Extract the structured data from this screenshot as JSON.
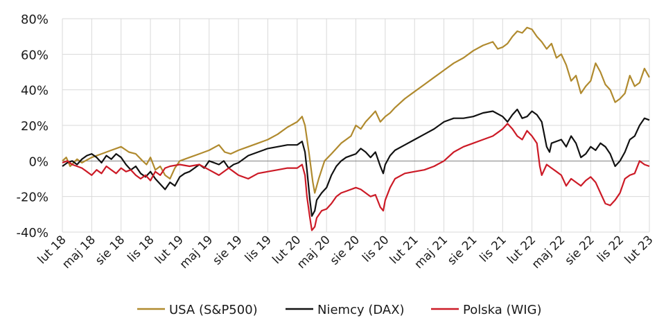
{
  "chart_data": {
    "type": "line",
    "title": "",
    "xlabel": "",
    "ylabel": "",
    "ylim": [
      -40,
      80
    ],
    "yticks": [
      -40,
      -20,
      0,
      20,
      40,
      60,
      80
    ],
    "ytick_labels": [
      "-40%",
      "-20%",
      "0%",
      "20%",
      "40%",
      "60%",
      "80%"
    ],
    "x_unit": "months since lut 18",
    "xlim": [
      0,
      60
    ],
    "xticks": [
      0,
      3,
      6,
      9,
      12,
      15,
      18,
      21,
      24,
      27,
      30,
      33,
      36,
      39,
      42,
      45,
      48,
      51,
      54,
      57,
      60
    ],
    "xtick_labels": [
      "lut 18",
      "maj 18",
      "sie 18",
      "lis 18",
      "lut 19",
      "maj 19",
      "sie 19",
      "lis 19",
      "lut 20",
      "maj 20",
      "sie 20",
      "lis 20",
      "lut 21",
      "maj 21",
      "sie 21",
      "lis 21",
      "lut 22",
      "maj 22",
      "sie 22",
      "lis 22",
      "lut 23"
    ],
    "grid": true,
    "legend_position": "bottom",
    "series": [
      {
        "name": "USA (S&P500)",
        "color": "#b08a2e",
        "points": [
          [
            0,
            0
          ],
          [
            0.4,
            2
          ],
          [
            0.8,
            -3
          ],
          [
            1.5,
            1
          ],
          [
            2,
            -1
          ],
          [
            3,
            2
          ],
          [
            4,
            4
          ],
          [
            5,
            6
          ],
          [
            6,
            8
          ],
          [
            6.8,
            5
          ],
          [
            7.5,
            4
          ],
          [
            8.2,
            0
          ],
          [
            8.6,
            -2
          ],
          [
            9,
            2
          ],
          [
            9.5,
            -5
          ],
          [
            10,
            -3
          ],
          [
            10.5,
            -8
          ],
          [
            11,
            -10
          ],
          [
            11.5,
            -4
          ],
          [
            12,
            0
          ],
          [
            13,
            2
          ],
          [
            14,
            4
          ],
          [
            15,
            6
          ],
          [
            16,
            9
          ],
          [
            16.6,
            5
          ],
          [
            17.2,
            4
          ],
          [
            18,
            6
          ],
          [
            19,
            8
          ],
          [
            20,
            10
          ],
          [
            21,
            12
          ],
          [
            22,
            15
          ],
          [
            23,
            19
          ],
          [
            24,
            22
          ],
          [
            24.5,
            25
          ],
          [
            24.8,
            20
          ],
          [
            25.2,
            5
          ],
          [
            25.6,
            -12
          ],
          [
            25.8,
            -18
          ],
          [
            26.2,
            -10
          ],
          [
            26.8,
            0
          ],
          [
            27.5,
            4
          ],
          [
            28.5,
            10
          ],
          [
            29.5,
            14
          ],
          [
            30,
            20
          ],
          [
            30.5,
            18
          ],
          [
            31,
            22
          ],
          [
            31.5,
            25
          ],
          [
            32,
            28
          ],
          [
            32.5,
            22
          ],
          [
            33,
            25
          ],
          [
            33.5,
            27
          ],
          [
            34,
            30
          ],
          [
            35,
            35
          ],
          [
            36,
            39
          ],
          [
            37,
            43
          ],
          [
            38,
            47
          ],
          [
            39,
            51
          ],
          [
            40,
            55
          ],
          [
            41,
            58
          ],
          [
            42,
            62
          ],
          [
            43,
            65
          ],
          [
            44,
            67
          ],
          [
            44.5,
            63
          ],
          [
            45,
            64
          ],
          [
            45.5,
            66
          ],
          [
            46,
            70
          ],
          [
            46.5,
            73
          ],
          [
            47,
            72
          ],
          [
            47.5,
            75
          ],
          [
            48,
            74
          ],
          [
            48.5,
            70
          ],
          [
            49,
            67
          ],
          [
            49.5,
            63
          ],
          [
            50,
            66
          ],
          [
            50.5,
            58
          ],
          [
            51,
            60
          ],
          [
            51.5,
            54
          ],
          [
            52,
            45
          ],
          [
            52.5,
            48
          ],
          [
            53,
            38
          ],
          [
            53.5,
            42
          ],
          [
            54,
            45
          ],
          [
            54.5,
            55
          ],
          [
            55,
            50
          ],
          [
            55.5,
            43
          ],
          [
            56,
            40
          ],
          [
            56.5,
            33
          ],
          [
            57,
            35
          ],
          [
            57.5,
            38
          ],
          [
            58,
            48
          ],
          [
            58.5,
            42
          ],
          [
            59,
            44
          ],
          [
            59.5,
            52
          ],
          [
            60,
            47
          ]
        ]
      },
      {
        "name": "Niemcy (DAX)",
        "color": "#111111",
        "points": [
          [
            0,
            -3
          ],
          [
            0.5,
            -1
          ],
          [
            1,
            0
          ],
          [
            1.5,
            -2
          ],
          [
            2,
            1
          ],
          [
            2.5,
            3
          ],
          [
            3,
            4
          ],
          [
            3.5,
            2
          ],
          [
            4,
            -1
          ],
          [
            4.5,
            3
          ],
          [
            5,
            1
          ],
          [
            5.5,
            4
          ],
          [
            6,
            2
          ],
          [
            6.5,
            -2
          ],
          [
            7,
            -5
          ],
          [
            7.5,
            -3
          ],
          [
            8,
            -7
          ],
          [
            8.5,
            -9
          ],
          [
            9,
            -6
          ],
          [
            9.5,
            -10
          ],
          [
            10,
            -13
          ],
          [
            10.5,
            -16
          ],
          [
            11,
            -12
          ],
          [
            11.5,
            -14
          ],
          [
            12,
            -9
          ],
          [
            12.5,
            -7
          ],
          [
            13,
            -6
          ],
          [
            13.5,
            -4
          ],
          [
            14,
            -2
          ],
          [
            14.5,
            -4
          ],
          [
            15,
            0
          ],
          [
            16,
            -2
          ],
          [
            16.5,
            0
          ],
          [
            17,
            -4
          ],
          [
            17.5,
            -2
          ],
          [
            18,
            -1
          ],
          [
            19,
            3
          ],
          [
            20,
            5
          ],
          [
            21,
            7
          ],
          [
            22,
            8
          ],
          [
            23,
            9
          ],
          [
            24,
            9
          ],
          [
            24.5,
            11
          ],
          [
            24.8,
            5
          ],
          [
            25,
            -5
          ],
          [
            25.3,
            -22
          ],
          [
            25.5,
            -31
          ],
          [
            25.8,
            -28
          ],
          [
            26,
            -22
          ],
          [
            26.5,
            -18
          ],
          [
            27,
            -15
          ],
          [
            27.5,
            -8
          ],
          [
            28,
            -3
          ],
          [
            28.5,
            0
          ],
          [
            29,
            2
          ],
          [
            30,
            4
          ],
          [
            30.5,
            7
          ],
          [
            31,
            5
          ],
          [
            31.5,
            2
          ],
          [
            32,
            5
          ],
          [
            32.5,
            -3
          ],
          [
            32.8,
            -7
          ],
          [
            33,
            -2
          ],
          [
            33.5,
            3
          ],
          [
            34,
            6
          ],
          [
            35,
            9
          ],
          [
            36,
            12
          ],
          [
            37,
            15
          ],
          [
            38,
            18
          ],
          [
            39,
            22
          ],
          [
            40,
            24
          ],
          [
            41,
            24
          ],
          [
            42,
            25
          ],
          [
            43,
            27
          ],
          [
            44,
            28
          ],
          [
            45,
            25
          ],
          [
            45.5,
            22
          ],
          [
            46,
            26
          ],
          [
            46.5,
            29
          ],
          [
            47,
            24
          ],
          [
            47.5,
            25
          ],
          [
            48,
            28
          ],
          [
            48.5,
            26
          ],
          [
            49,
            22
          ],
          [
            49.5,
            8
          ],
          [
            49.8,
            5
          ],
          [
            50,
            10
          ],
          [
            51,
            12
          ],
          [
            51.5,
            8
          ],
          [
            52,
            14
          ],
          [
            52.5,
            10
          ],
          [
            53,
            2
          ],
          [
            53.5,
            4
          ],
          [
            54,
            8
          ],
          [
            54.5,
            6
          ],
          [
            55,
            10
          ],
          [
            55.5,
            8
          ],
          [
            56,
            4
          ],
          [
            56.5,
            -3
          ],
          [
            57,
            0
          ],
          [
            57.5,
            5
          ],
          [
            58,
            12
          ],
          [
            58.5,
            14
          ],
          [
            59,
            20
          ],
          [
            59.5,
            24
          ],
          [
            60,
            23
          ]
        ]
      },
      {
        "name": "Polska (WIG)",
        "color": "#cc1a26",
        "points": [
          [
            0,
            -1
          ],
          [
            0.5,
            0
          ],
          [
            1,
            -2
          ],
          [
            1.5,
            -3
          ],
          [
            2,
            -4
          ],
          [
            2.5,
            -6
          ],
          [
            3,
            -8
          ],
          [
            3.5,
            -5
          ],
          [
            4,
            -7
          ],
          [
            4.5,
            -3
          ],
          [
            5,
            -5
          ],
          [
            5.5,
            -7
          ],
          [
            6,
            -4
          ],
          [
            6.5,
            -6
          ],
          [
            7,
            -5
          ],
          [
            7.5,
            -8
          ],
          [
            8,
            -10
          ],
          [
            8.5,
            -8
          ],
          [
            9,
            -11
          ],
          [
            9.5,
            -6
          ],
          [
            10,
            -8
          ],
          [
            10.5,
            -4
          ],
          [
            11,
            -3
          ],
          [
            12,
            -2
          ],
          [
            13,
            -3
          ],
          [
            14,
            -2
          ],
          [
            15,
            -5
          ],
          [
            16,
            -8
          ],
          [
            16.5,
            -6
          ],
          [
            17,
            -4
          ],
          [
            17.5,
            -6
          ],
          [
            18,
            -8
          ],
          [
            19,
            -10
          ],
          [
            20,
            -7
          ],
          [
            21,
            -6
          ],
          [
            22,
            -5
          ],
          [
            23,
            -4
          ],
          [
            24,
            -4
          ],
          [
            24.5,
            -2
          ],
          [
            24.8,
            -8
          ],
          [
            25,
            -20
          ],
          [
            25.3,
            -32
          ],
          [
            25.5,
            -39
          ],
          [
            25.8,
            -37
          ],
          [
            26,
            -32
          ],
          [
            26.5,
            -28
          ],
          [
            27,
            -27
          ],
          [
            27.5,
            -24
          ],
          [
            28,
            -20
          ],
          [
            28.5,
            -18
          ],
          [
            29,
            -17
          ],
          [
            30,
            -15
          ],
          [
            30.5,
            -16
          ],
          [
            31,
            -18
          ],
          [
            31.5,
            -20
          ],
          [
            32,
            -19
          ],
          [
            32.5,
            -26
          ],
          [
            32.8,
            -28
          ],
          [
            33,
            -22
          ],
          [
            33.5,
            -15
          ],
          [
            34,
            -10
          ],
          [
            35,
            -7
          ],
          [
            36,
            -6
          ],
          [
            37,
            -5
          ],
          [
            38,
            -3
          ],
          [
            39,
            0
          ],
          [
            40,
            5
          ],
          [
            41,
            8
          ],
          [
            42,
            10
          ],
          [
            43,
            12
          ],
          [
            44,
            14
          ],
          [
            44.5,
            16
          ],
          [
            45,
            18
          ],
          [
            45.5,
            21
          ],
          [
            46,
            18
          ],
          [
            46.5,
            14
          ],
          [
            47,
            12
          ],
          [
            47.5,
            17
          ],
          [
            48,
            14
          ],
          [
            48.5,
            10
          ],
          [
            48.8,
            -3
          ],
          [
            49,
            -8
          ],
          [
            49.5,
            -2
          ],
          [
            50,
            -4
          ],
          [
            50.5,
            -6
          ],
          [
            51,
            -8
          ],
          [
            51.5,
            -14
          ],
          [
            52,
            -10
          ],
          [
            52.5,
            -12
          ],
          [
            53,
            -14
          ],
          [
            53.5,
            -11
          ],
          [
            54,
            -9
          ],
          [
            54.5,
            -12
          ],
          [
            55,
            -18
          ],
          [
            55.5,
            -24
          ],
          [
            56,
            -25
          ],
          [
            56.5,
            -22
          ],
          [
            57,
            -18
          ],
          [
            57.5,
            -10
          ],
          [
            58,
            -8
          ],
          [
            58.5,
            -7
          ],
          [
            59,
            0
          ],
          [
            59.5,
            -2
          ],
          [
            60,
            -3
          ]
        ]
      }
    ]
  }
}
